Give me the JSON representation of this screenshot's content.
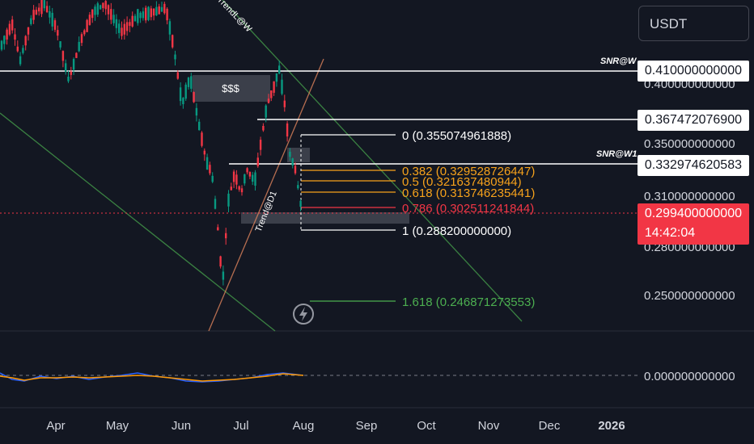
{
  "currency": "USDT",
  "chart_data": {
    "type": "candlestick",
    "price_axis": {
      "ylim": [
        0.2,
        0.44
      ],
      "ticks": [
        {
          "value": 0.4,
          "label": "0.400000000000"
        },
        {
          "value": 0.35,
          "label": "0.350000000000"
        },
        {
          "value": 0.31,
          "label": "0.310000000000"
        },
        {
          "value": 0.28,
          "label": "0.280000000000"
        },
        {
          "value": 0.25,
          "label": "0.250000000000"
        }
      ]
    },
    "time_axis": {
      "ticks": [
        "Apr",
        "May",
        "Jun",
        "Jul",
        "Aug",
        "Sep",
        "Oct",
        "Nov",
        "Dec",
        "2026"
      ]
    },
    "price_tags": [
      {
        "label": "0.410000000000",
        "value": 0.41,
        "note": "SNR@W",
        "style": "white"
      },
      {
        "label": "0.367472076900",
        "value": 0.3675,
        "note": "",
        "style": "white"
      },
      {
        "label": "0.332974620583",
        "value": 0.333,
        "note": "SNR@W1",
        "style": "white"
      },
      {
        "label": "0.299400000000",
        "value": 0.2994,
        "note": "",
        "style": "red"
      }
    ],
    "countdown": "14:42:04",
    "fibonacci": [
      {
        "label": "0 (0.355074961888)",
        "color": "#ffffff"
      },
      {
        "label": "0.382 (0.329528726447)",
        "color": "#f7a21b"
      },
      {
        "label": "0.5 (0.321637480944)",
        "color": "#f7a21b"
      },
      {
        "label": "0.618 (0.313746235441)",
        "color": "#f7a21b"
      },
      {
        "label": "0.786 (0.302511241844)",
        "color": "#f23645"
      },
      {
        "label": "1 (0.288200000000)",
        "color": "#ffffff"
      },
      {
        "label": "1.618 (0.246871273553)",
        "color": "#4caf50"
      }
    ],
    "annotations": [
      "$$$",
      "TrendL@W",
      "Trend@D1"
    ],
    "oscillator": {
      "ticks": [
        {
          "value": 0,
          "label": "0.000000000000"
        }
      ]
    }
  }
}
